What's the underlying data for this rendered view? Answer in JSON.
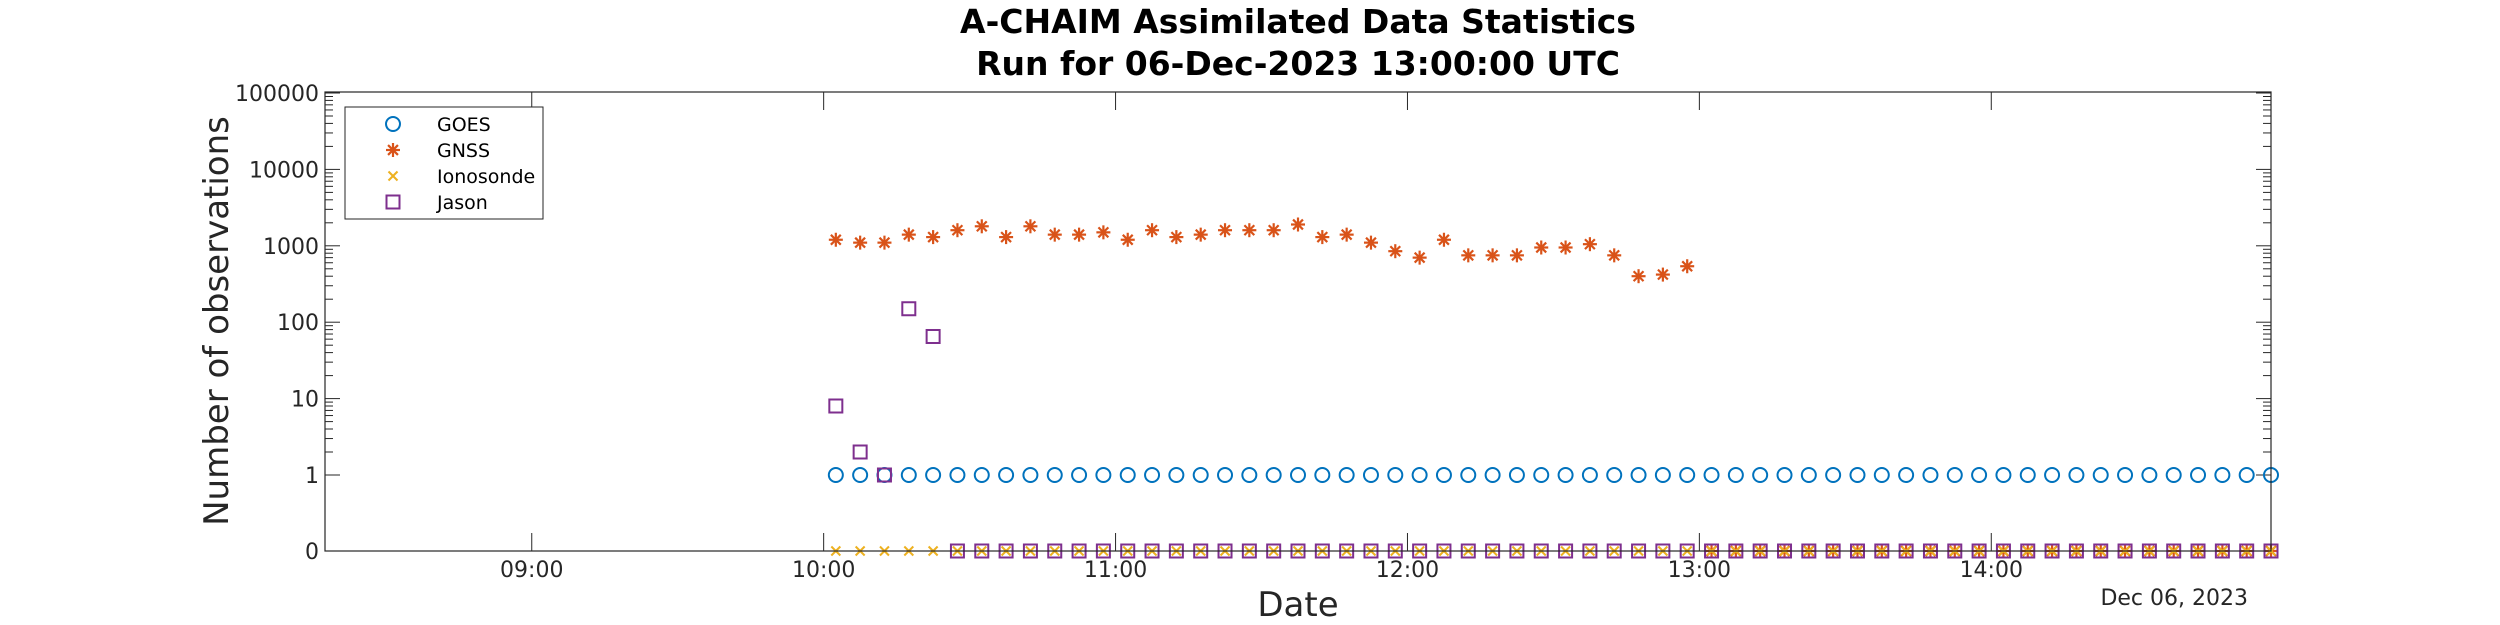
{
  "chart_data": {
    "type": "scatter",
    "title": [
      "A-CHAIM Assimilated Data Statistics",
      "Run for 06-Dec-2023 13:00:00 UTC"
    ],
    "xlabel": "Date",
    "ylabel": "Number of observations",
    "date_label": "Dec 06, 2023",
    "x_unit": "hours (UTC) on 06-Dec-2023",
    "xlim": [
      8.2917,
      14.9583
    ],
    "x_ticks": [
      9,
      10,
      11,
      12,
      13,
      14
    ],
    "x_tick_labels": [
      "09:00",
      "10:00",
      "11:00",
      "12:00",
      "13:00",
      "14:00"
    ],
    "y_scale": "log (0 plotted at bottom axis)",
    "y_ticks": [
      0,
      1,
      10,
      100,
      1000,
      10000,
      100000
    ],
    "y_tick_labels": [
      "0",
      "1",
      "10",
      "100",
      "1000",
      "10000",
      "100000"
    ],
    "legend_position": "top-left",
    "series": [
      {
        "name": "GOES",
        "marker": "circle",
        "color": "#0072BD",
        "x": [
          10.0417,
          10.125,
          10.2083,
          10.2917,
          10.375,
          10.4583,
          10.5417,
          10.625,
          10.7083,
          10.7917,
          10.875,
          10.9583,
          11.0417,
          11.125,
          11.2083,
          11.2917,
          11.375,
          11.4583,
          11.5417,
          11.625,
          11.7083,
          11.7917,
          11.875,
          11.9583,
          12.0417,
          12.125,
          12.2083,
          12.2917,
          12.375,
          12.4583,
          12.5417,
          12.625,
          12.7083,
          12.7917,
          12.875,
          12.9583,
          13.0417,
          13.125,
          13.2083,
          13.2917,
          13.375,
          13.4583,
          13.5417,
          13.625,
          13.7083,
          13.7917,
          13.875,
          13.9583,
          14.0417,
          14.125,
          14.2083,
          14.2917,
          14.375,
          14.4583,
          14.5417,
          14.625,
          14.7083,
          14.7917,
          14.875,
          14.9583
        ],
        "values": [
          1,
          1,
          1,
          1,
          1,
          1,
          1,
          1,
          1,
          1,
          1,
          1,
          1,
          1,
          1,
          1,
          1,
          1,
          1,
          1,
          1,
          1,
          1,
          1,
          1,
          1,
          1,
          1,
          1,
          1,
          1,
          1,
          1,
          1,
          1,
          1,
          1,
          1,
          1,
          1,
          1,
          1,
          1,
          1,
          1,
          1,
          1,
          1,
          1,
          1,
          1,
          1,
          1,
          1,
          1,
          1,
          1,
          1,
          1,
          1
        ]
      },
      {
        "name": "GNSS",
        "marker": "star",
        "color": "#D95319",
        "x": [
          10.0417,
          10.125,
          10.2083,
          10.2917,
          10.375,
          10.4583,
          10.5417,
          10.625,
          10.7083,
          10.7917,
          10.875,
          10.9583,
          11.0417,
          11.125,
          11.2083,
          11.2917,
          11.375,
          11.4583,
          11.5417,
          11.625,
          11.7083,
          11.7917,
          11.875,
          11.9583,
          12.0417,
          12.125,
          12.2083,
          12.2917,
          12.375,
          12.4583,
          12.5417,
          12.625,
          12.7083,
          12.7917,
          12.875,
          12.9583,
          13.0417,
          13.125,
          13.2083,
          13.2917,
          13.375,
          13.4583,
          13.5417,
          13.625,
          13.7083,
          13.7917,
          13.875,
          13.9583,
          14.0417,
          14.125,
          14.2083,
          14.2917,
          14.375,
          14.4583,
          14.5417,
          14.625,
          14.7083,
          14.7917,
          14.875,
          14.9583
        ],
        "values": [
          1200,
          1100,
          1100,
          1400,
          1300,
          1600,
          1800,
          1300,
          1800,
          1400,
          1400,
          1500,
          1200,
          1600,
          1300,
          1400,
          1600,
          1600,
          1600,
          1900,
          1300,
          1400,
          1100,
          850,
          700,
          1200,
          750,
          750,
          750,
          950,
          950,
          1050,
          750,
          400,
          420,
          540,
          0,
          0,
          0,
          0,
          0,
          0,
          0,
          0,
          0,
          0,
          0,
          0,
          0,
          0,
          0,
          0,
          0,
          0,
          0,
          0,
          0,
          0,
          0,
          0
        ]
      },
      {
        "name": "Ionosonde",
        "marker": "x",
        "color": "#EDB120",
        "x": [
          10.0417,
          10.125,
          10.2083,
          10.2917,
          10.375,
          10.4583,
          10.5417,
          10.625,
          10.7083,
          10.7917,
          10.875,
          10.9583,
          11.0417,
          11.125,
          11.2083,
          11.2917,
          11.375,
          11.4583,
          11.5417,
          11.625,
          11.7083,
          11.7917,
          11.875,
          11.9583,
          12.0417,
          12.125,
          12.2083,
          12.2917,
          12.375,
          12.4583,
          12.5417,
          12.625,
          12.7083,
          12.7917,
          12.875,
          12.9583,
          13.0417,
          13.125,
          13.2083,
          13.2917,
          13.375,
          13.4583,
          13.5417,
          13.625,
          13.7083,
          13.7917,
          13.875,
          13.9583,
          14.0417,
          14.125,
          14.2083,
          14.2917,
          14.375,
          14.4583,
          14.5417,
          14.625,
          14.7083,
          14.7917,
          14.875,
          14.9583
        ],
        "values": [
          0,
          0,
          0,
          0,
          0,
          0,
          0,
          0,
          0,
          0,
          0,
          0,
          0,
          0,
          0,
          0,
          0,
          0,
          0,
          0,
          0,
          0,
          0,
          0,
          0,
          0,
          0,
          0,
          0,
          0,
          0,
          0,
          0,
          0,
          0,
          0,
          0,
          0,
          0,
          0,
          0,
          0,
          0,
          0,
          0,
          0,
          0,
          0,
          0,
          0,
          0,
          0,
          0,
          0,
          0,
          0,
          0,
          0,
          0,
          0
        ]
      },
      {
        "name": "Jason",
        "marker": "square",
        "color": "#7E2F8E",
        "x": [
          10.0417,
          10.125,
          10.2083,
          10.2917,
          10.375,
          10.4583,
          10.5417,
          10.625,
          10.7083,
          10.7917,
          10.875,
          10.9583,
          11.0417,
          11.125,
          11.2083,
          11.2917,
          11.375,
          11.4583,
          11.5417,
          11.625,
          11.7083,
          11.7917,
          11.875,
          11.9583,
          12.0417,
          12.125,
          12.2083,
          12.2917,
          12.375,
          12.4583,
          12.5417,
          12.625,
          12.7083,
          12.7917,
          12.875,
          12.9583,
          13.0417,
          13.125,
          13.2083,
          13.2917,
          13.375,
          13.4583,
          13.5417,
          13.625,
          13.7083,
          13.7917,
          13.875,
          13.9583,
          14.0417,
          14.125,
          14.2083,
          14.2917,
          14.375,
          14.4583,
          14.5417,
          14.625,
          14.7083,
          14.7917,
          14.875,
          14.9583
        ],
        "values": [
          8,
          2,
          1,
          150,
          65,
          0,
          0,
          0,
          0,
          0,
          0,
          0,
          0,
          0,
          0,
          0,
          0,
          0,
          0,
          0,
          0,
          0,
          0,
          0,
          0,
          0,
          0,
          0,
          0,
          0,
          0,
          0,
          0,
          0,
          0,
          0,
          0,
          0,
          0,
          0,
          0,
          0,
          0,
          0,
          0,
          0,
          0,
          0,
          0,
          0,
          0,
          0,
          0,
          0,
          0,
          0,
          0,
          0,
          0,
          0
        ]
      }
    ]
  }
}
